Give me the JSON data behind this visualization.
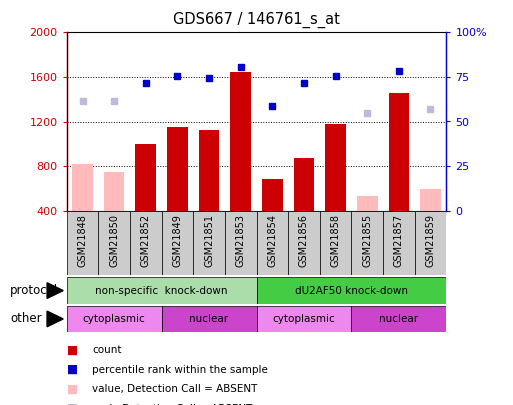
{
  "title": "GDS667 / 146761_s_at",
  "samples": [
    "GSM21848",
    "GSM21850",
    "GSM21852",
    "GSM21849",
    "GSM21851",
    "GSM21853",
    "GSM21854",
    "GSM21856",
    "GSM21858",
    "GSM21855",
    "GSM21857",
    "GSM21859"
  ],
  "count_values": [
    null,
    null,
    1000,
    1150,
    1120,
    1640,
    680,
    870,
    1175,
    null,
    1460,
    null
  ],
  "count_absent": [
    820,
    750,
    null,
    null,
    null,
    null,
    null,
    null,
    null,
    530,
    null,
    590
  ],
  "rank_values": [
    null,
    null,
    1550,
    1610,
    1590,
    1690,
    1340,
    1550,
    1610,
    null,
    1650,
    null
  ],
  "rank_absent": [
    1380,
    1380,
    null,
    null,
    null,
    null,
    null,
    null,
    null,
    1280,
    null,
    1310
  ],
  "ylim_left": [
    400,
    2000
  ],
  "ylim_right": [
    0,
    100
  ],
  "yticks_left": [
    400,
    800,
    1200,
    1600,
    2000
  ],
  "yticks_right": [
    0,
    25,
    50,
    75,
    100
  ],
  "ytick_right_labels": [
    "0",
    "25",
    "50",
    "75",
    "100%"
  ],
  "protocol_groups": [
    {
      "label": "non-specific  knock-down",
      "start": 0,
      "end": 6,
      "color": "#aaddaa"
    },
    {
      "label": "dU2AF50 knock-down",
      "start": 6,
      "end": 12,
      "color": "#44cc44"
    }
  ],
  "other_groups": [
    {
      "label": "cytoplasmic",
      "start": 0,
      "end": 3,
      "color": "#ee88ee"
    },
    {
      "label": "nuclear",
      "start": 3,
      "end": 6,
      "color": "#cc44cc"
    },
    {
      "label": "cytoplasmic",
      "start": 6,
      "end": 9,
      "color": "#ee88ee"
    },
    {
      "label": "nuclear",
      "start": 9,
      "end": 12,
      "color": "#cc44cc"
    }
  ],
  "bar_color_present": "#cc0000",
  "bar_color_absent": "#ffbbbb",
  "dot_color_present": "#0000cc",
  "dot_color_absent": "#bbbbdd",
  "tick_label_color": "#cc0000",
  "right_tick_color": "#0000cc",
  "bg_color": "#ffffff",
  "sample_bg_color": "#cccccc",
  "legend_items": [
    {
      "color": "#cc0000",
      "label": "count"
    },
    {
      "color": "#0000cc",
      "label": "percentile rank within the sample"
    },
    {
      "color": "#ffbbbb",
      "label": "value, Detection Call = ABSENT"
    },
    {
      "color": "#bbbbdd",
      "label": "rank, Detection Call = ABSENT"
    }
  ]
}
